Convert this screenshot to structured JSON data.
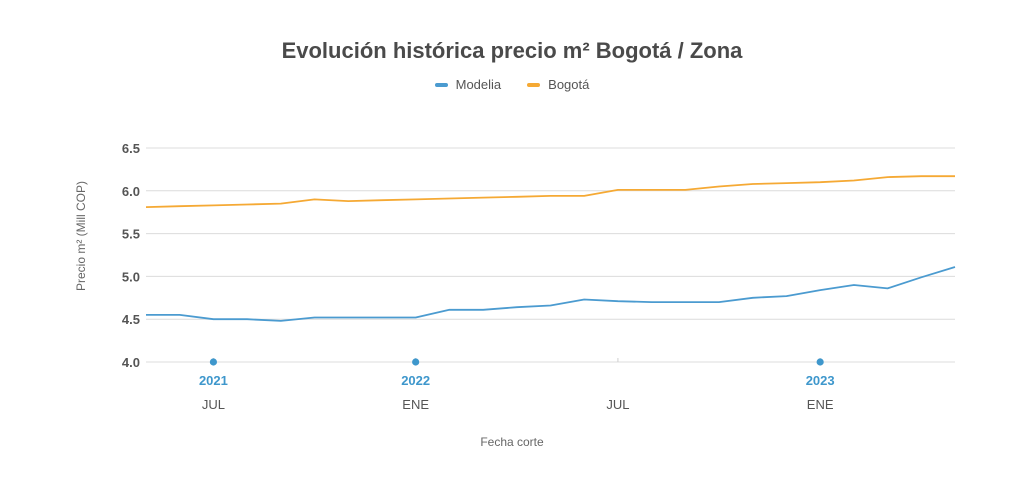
{
  "chart_data": {
    "type": "line",
    "title": "Evolución histórica precio m² Bogotá / Zona",
    "xlabel": "Fecha corte",
    "ylabel": "Precio m² (Mill COP)",
    "ylim": [
      4.0,
      6.5
    ],
    "yticks": [
      "6.5",
      "6.0",
      "5.5",
      "5.0",
      "4.5",
      "4.0"
    ],
    "ytick_values": [
      6.5,
      6.0,
      5.5,
      5.0,
      4.5,
      4.0
    ],
    "x": [
      0,
      1,
      2,
      3,
      4,
      5,
      6,
      7,
      8,
      9,
      10,
      11,
      12,
      13,
      14,
      15,
      16,
      17,
      18,
      19,
      20,
      21,
      22,
      23,
      24
    ],
    "series": [
      {
        "name": "Modelia",
        "color": "#4b9bd0",
        "values": [
          4.55,
          4.55,
          4.5,
          4.5,
          4.48,
          4.52,
          4.52,
          4.52,
          4.52,
          4.61,
          4.61,
          4.64,
          4.66,
          4.73,
          4.71,
          4.7,
          4.7,
          4.7,
          4.75,
          4.77,
          4.84,
          4.9,
          4.86,
          4.99,
          5.11
        ]
      },
      {
        "name": "Bogotá",
        "color": "#f5a934",
        "values": [
          5.81,
          5.82,
          5.83,
          5.84,
          5.85,
          5.9,
          5.88,
          5.89,
          5.9,
          5.91,
          5.92,
          5.93,
          5.94,
          5.94,
          6.01,
          6.01,
          6.01,
          6.05,
          6.08,
          6.09,
          6.1,
          6.12,
          6.16,
          6.17,
          6.17
        ]
      }
    ],
    "year_markers": [
      {
        "label": "2021",
        "x": 2
      },
      {
        "label": "2022",
        "x": 8
      },
      {
        "label": "2023",
        "x": 20
      }
    ],
    "month_labels": [
      {
        "label": "JUL",
        "x": 2
      },
      {
        "label": "ENE",
        "x": 8
      },
      {
        "label": "JUL",
        "x": 14
      },
      {
        "label": "ENE",
        "x": 20
      }
    ],
    "accent": "#3e97cc",
    "grid": true,
    "legend_position": "top-center"
  }
}
